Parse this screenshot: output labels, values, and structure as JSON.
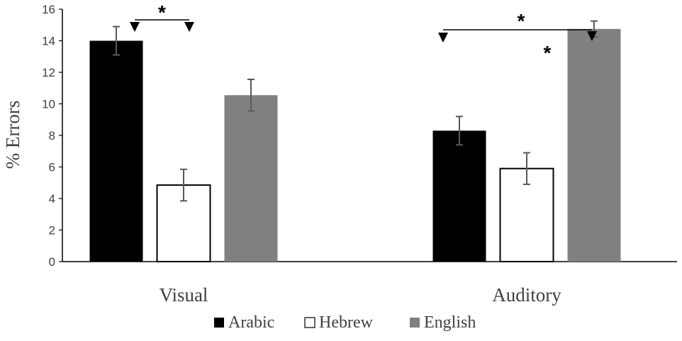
{
  "chart_data": {
    "type": "bar",
    "ylabel": "% Errors",
    "ylim": [
      0,
      16
    ],
    "yticks": [
      0,
      2,
      4,
      6,
      8,
      10,
      12,
      14,
      16
    ],
    "grid": false,
    "legend_position": "bottom",
    "categories": [
      "Visual",
      "Auditory"
    ],
    "series": [
      {
        "name": "Arabic",
        "color": "#000000",
        "values": [
          14.0,
          8.3
        ],
        "errors": [
          0.9,
          0.9
        ]
      },
      {
        "name": "Hebrew",
        "color": "#ffffff",
        "values": [
          4.85,
          5.9
        ],
        "errors": [
          1.0,
          1.0
        ]
      },
      {
        "name": "English",
        "color": "#808080",
        "values": [
          10.55,
          14.75
        ],
        "errors": [
          1.0,
          0.5
        ]
      }
    ],
    "annotations": [
      {
        "text": "*",
        "category": "Visual",
        "from_series": "Arabic",
        "to_series": "Hebrew"
      },
      {
        "text": "*",
        "category": "Auditory",
        "from_series": "Arabic",
        "to_series": "English"
      },
      {
        "text": "*",
        "category": "Auditory",
        "near_series": "English"
      }
    ]
  }
}
